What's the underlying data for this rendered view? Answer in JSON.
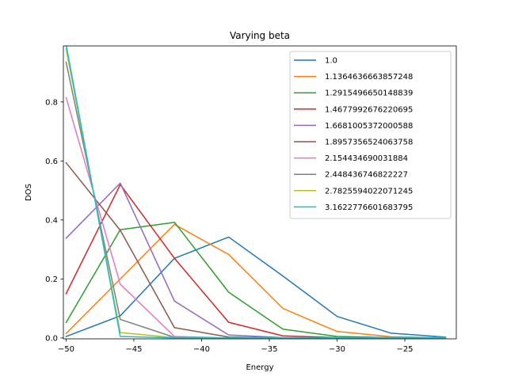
{
  "chart_data": {
    "type": "line",
    "title": "Varying beta",
    "xlabel": "Energy",
    "ylabel": "DOS",
    "xlim": [
      -50.2,
      -21.2
    ],
    "ylim": [
      -0.003,
      0.99
    ],
    "xticks": [
      -50,
      -45,
      -40,
      -35,
      -30,
      -25
    ],
    "xtick_labels": [
      "−50",
      "−45",
      "−40",
      "−35",
      "−30",
      "−25"
    ],
    "yticks": [
      0.0,
      0.2,
      0.4,
      0.6,
      0.8
    ],
    "ytick_labels": [
      "0.0",
      "0.2",
      "0.4",
      "0.6",
      "0.8"
    ],
    "grid": false,
    "legend_position": "top-right",
    "x": [
      -50,
      -46,
      -42,
      -38,
      -34,
      -30,
      -26,
      -22
    ],
    "series": [
      {
        "name": "1.0",
        "color": "#1f77b4",
        "values": [
          0.005,
          0.075,
          0.27,
          0.342,
          0.21,
          0.073,
          0.016,
          0.003
        ]
      },
      {
        "name": "1.1364636663857248",
        "color": "#ff7f0e",
        "values": [
          0.015,
          0.2,
          0.385,
          0.283,
          0.1,
          0.022,
          0.004,
          0.001
        ]
      },
      {
        "name": "1.2915496650148839",
        "color": "#2ca02c",
        "values": [
          0.052,
          0.367,
          0.392,
          0.155,
          0.03,
          0.005,
          0.001,
          0.0
        ]
      },
      {
        "name": "1.4677992676220695",
        "color": "#d62728",
        "values": [
          0.15,
          0.52,
          0.27,
          0.053,
          0.007,
          0.001,
          0.0,
          0.0
        ]
      },
      {
        "name": "1.6681005372000588",
        "color": "#9467bd",
        "values": [
          0.338,
          0.525,
          0.125,
          0.01,
          0.001,
          0.0,
          0.0,
          0.0
        ]
      },
      {
        "name": "1.8957356524063758",
        "color": "#8c564b",
        "values": [
          0.594,
          0.365,
          0.035,
          0.003,
          0.0,
          0.0,
          0.0,
          0.0
        ]
      },
      {
        "name": "2.154434690031884",
        "color": "#e377c2",
        "values": [
          0.815,
          0.182,
          0.005,
          0.0,
          0.0,
          0.0,
          0.0,
          0.0
        ]
      },
      {
        "name": "2.448436746822227",
        "color": "#7f7f7f",
        "values": [
          0.935,
          0.063,
          0.002,
          0.0,
          0.0,
          0.0,
          0.0,
          0.0
        ]
      },
      {
        "name": "2.7825594022071245",
        "color": "#bcbd22",
        "values": [
          0.98,
          0.018,
          0.001,
          0.0,
          0.0,
          0.0,
          0.0,
          0.0
        ]
      },
      {
        "name": "3.1622776601683795",
        "color": "#17becf",
        "values": [
          0.995,
          0.005,
          0.0,
          0.0,
          0.0,
          0.0,
          0.0,
          0.0
        ]
      }
    ]
  }
}
